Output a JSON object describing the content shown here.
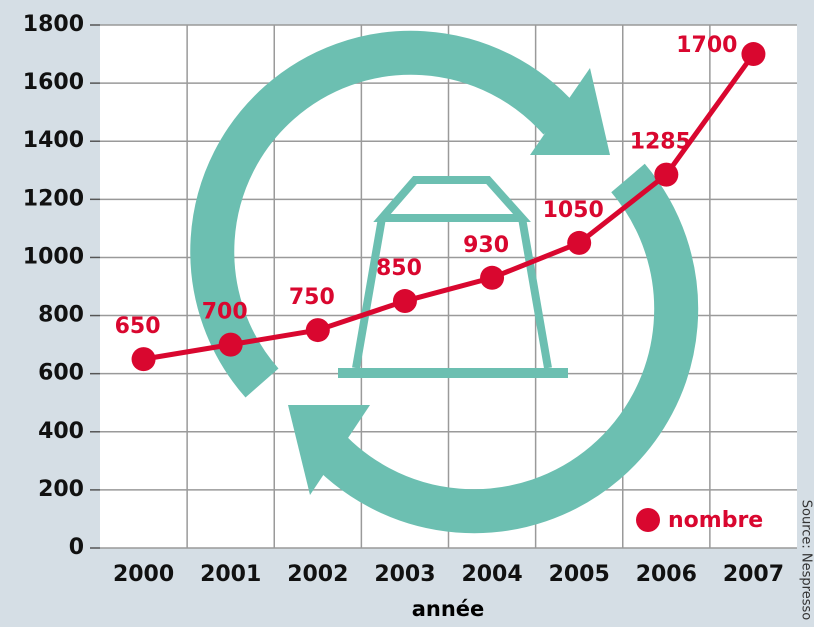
{
  "chart_data": {
    "type": "line",
    "x_label": "année",
    "source": "Source: Nespresso",
    "categories": [
      "2000",
      "2001",
      "2002",
      "2003",
      "2004",
      "2005",
      "2006",
      "2007"
    ],
    "series": [
      {
        "name": "nombre",
        "color": "#d9072f",
        "values": [
          650,
          700,
          750,
          850,
          930,
          1050,
          1285,
          1700
        ]
      }
    ],
    "ylim": [
      0,
      1800
    ],
    "yticks": [
      0,
      200,
      400,
      600,
      800,
      1000,
      1200,
      1400,
      1600,
      1800
    ],
    "grid": true,
    "legend": "bottom-right"
  }
}
